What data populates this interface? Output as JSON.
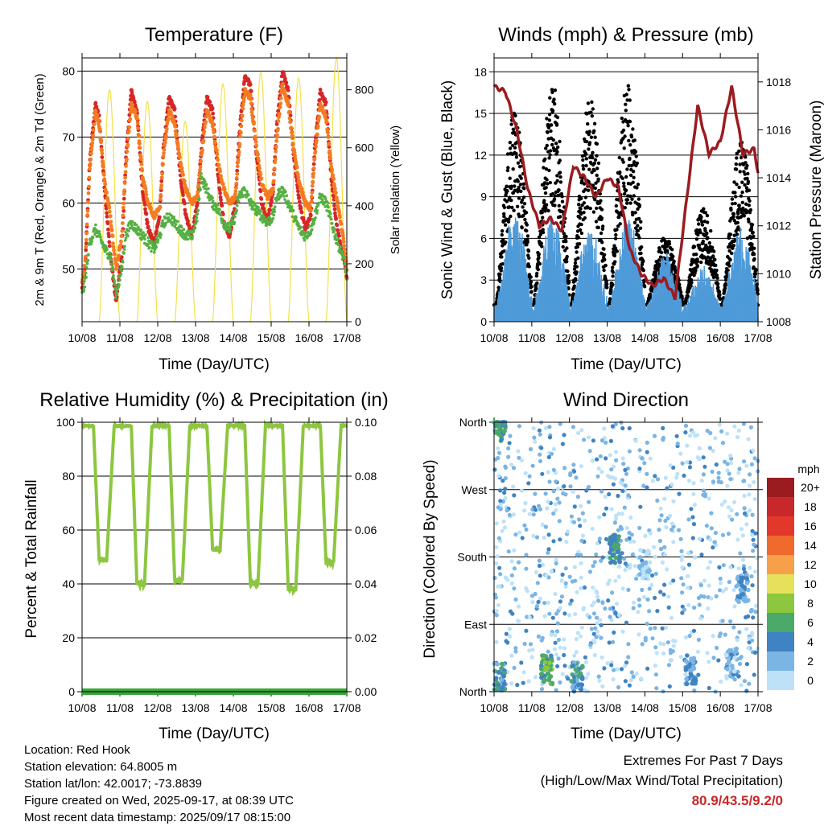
{
  "panels": {
    "temperature": {
      "title": "Temperature (F)",
      "xlabel": "Time (Day/UTC)",
      "ylabel_left": "2m & 9m T (Red, Orange) & 2m Td (Green)",
      "ylabel_right": "Solar Insolation (Yellow)"
    },
    "winds": {
      "title": "Winds (mph) & Pressure (mb)",
      "xlabel": "Time (Day/UTC)",
      "ylabel_left": "Sonic Wind & Gust (Blue, Black)",
      "ylabel_right": "Station Pressure (Maroon)"
    },
    "humidity": {
      "title": "Relative Humidity (%) & Precipitation (in)",
      "xlabel": "Time (Day/UTC)",
      "ylabel_left": "Percent & Total Rainfall"
    },
    "wind_direction": {
      "title": "Wind Direction",
      "xlabel": "Time (Day/UTC)",
      "ylabel_left": "Direction (Colored By Speed)",
      "legend_title": "mph"
    }
  },
  "footer": {
    "location": "Location: Red Hook",
    "elevation": "Station elevation: 64.8005 m",
    "latlon": "Station lat/lon: 42.0017; -73.8839",
    "created": "Figure created on Wed, 2025-09-17, at 08:39 UTC",
    "recent": "Most recent data timestamp: 2025/09/17 08:15:00"
  },
  "extremes": {
    "line1": "Extremes For Past 7 Days",
    "line2": "(High/Low/Max Wind/Total Precipitation)",
    "values": "80.9/43.5/9.2/0",
    "value_color": "#c8282a"
  },
  "colors": {
    "t2m": "#d62728",
    "t9m": "#f47c20",
    "td": "#55b043",
    "solar": "#f5e04a",
    "wind": "#4f9bd9",
    "gust": "#000000",
    "pressure": "#9b1c1f",
    "rh": "#8dc63f",
    "precip": "#3aa53a"
  },
  "chart_data": [
    {
      "type": "line",
      "title": "Temperature (F)",
      "xlabel": "Time (Day/UTC)",
      "ylabel": "2m & 9m T (Red, Orange) & 2m Td (Green)",
      "y2label": "Solar Insolation (Yellow)",
      "x_ticks": [
        "10/08",
        "11/08",
        "12/08",
        "13/08",
        "14/08",
        "15/08",
        "16/08",
        "17/08"
      ],
      "ylim": [
        42,
        82
      ],
      "y_ticks": [
        50,
        60,
        70,
        80
      ],
      "y2lim": [
        0,
        910
      ],
      "y2_ticks": [
        0,
        200,
        400,
        600,
        800
      ],
      "x_days": [
        0,
        0.08,
        0.2,
        0.35,
        0.45,
        0.6,
        0.75,
        0.9,
        1.05,
        1.15,
        1.3,
        1.45,
        1.6,
        1.75,
        1.9,
        2.05,
        2.15,
        2.3,
        2.45,
        2.6,
        2.75,
        2.9,
        3.05,
        3.15,
        3.3,
        3.45,
        3.6,
        3.75,
        3.9,
        4.05,
        4.15,
        4.3,
        4.45,
        4.6,
        4.75,
        4.9,
        5.05,
        5.15,
        5.3,
        5.45,
        5.6,
        5.75,
        5.9,
        6.05,
        6.15,
        6.3,
        6.45,
        6.6,
        6.75,
        6.9,
        7.0
      ],
      "series": [
        {
          "name": "2m T",
          "color": "#d62728",
          "values": [
            47,
            50,
            66,
            75,
            73,
            62,
            52,
            45,
            52,
            66,
            77,
            74,
            62,
            56,
            54,
            58,
            68,
            76,
            74,
            64,
            58,
            55,
            60,
            68,
            76,
            74,
            64,
            57,
            55,
            60,
            70,
            79,
            78,
            68,
            60,
            57,
            62,
            72,
            80,
            77,
            67,
            60,
            56,
            58,
            68,
            77,
            75,
            63,
            56,
            52,
            49
          ]
        },
        {
          "name": "9m T",
          "color": "#f47c20",
          "values": [
            48,
            51,
            65,
            74,
            72,
            63,
            58,
            50,
            55,
            65,
            75,
            73,
            64,
            60,
            58,
            59,
            67,
            74,
            72,
            66,
            62,
            60,
            61,
            67,
            74,
            72,
            66,
            62,
            60,
            61,
            68,
            77,
            76,
            69,
            63,
            61,
            62,
            70,
            78,
            75,
            68,
            63,
            60,
            59,
            67,
            75,
            73,
            65,
            60,
            55,
            50
          ]
        },
        {
          "name": "2m Td",
          "color": "#55b043",
          "values": [
            46,
            48,
            54,
            56,
            55,
            53,
            52,
            46,
            50,
            55,
            57,
            56,
            55,
            54,
            53,
            55,
            57,
            58,
            57,
            56,
            55,
            55,
            58,
            64,
            62,
            60,
            59,
            57,
            56,
            58,
            61,
            62,
            60,
            59,
            58,
            57,
            58,
            61,
            62,
            60,
            58,
            56,
            55,
            56,
            58,
            61,
            60,
            57,
            54,
            52,
            49
          ]
        }
      ],
      "solar": {
        "name": "Solar Insolation",
        "color": "#f5e04a",
        "peaks": [
          800,
          760,
          690,
          820,
          860,
          840,
          910
        ],
        "peak_day_offset": 0.7
      }
    },
    {
      "type": "line",
      "title": "Winds (mph) & Pressure (mb)",
      "xlabel": "Time (Day/UTC)",
      "ylabel": "Sonic Wind & Gust (Blue, Black)",
      "y2label": "Station Pressure (Maroon)",
      "x_ticks": [
        "10/08",
        "11/08",
        "12/08",
        "13/08",
        "14/08",
        "15/08",
        "16/08",
        "17/08"
      ],
      "ylim": [
        0,
        19
      ],
      "y_ticks": [
        0,
        3,
        6,
        9,
        12,
        15,
        18
      ],
      "y2lim": [
        1008,
        1019
      ],
      "y2_ticks": [
        1008,
        1010,
        1012,
        1014,
        1016,
        1018
      ],
      "x_days": [
        0,
        0.3,
        0.6,
        0.9,
        1.2,
        1.5,
        1.8,
        2.1,
        2.4,
        2.7,
        3.0,
        3.3,
        3.6,
        3.9,
        4.2,
        4.5,
        4.8,
        5.1,
        5.4,
        5.7,
        6.0,
        6.3,
        6.6,
        6.9,
        7.0
      ],
      "pressure": {
        "name": "Station Pressure",
        "color": "#9b1c1f",
        "values": [
          1017.8,
          1017.6,
          1016.0,
          1013.5,
          1012.0,
          1012.3,
          1011.8,
          1014.5,
          1014.0,
          1013.2,
          1014.0,
          1013.6,
          1011.0,
          1010.0,
          1009.5,
          1009.8,
          1009.0,
          1013.0,
          1017.0,
          1015.0,
          1015.5,
          1017.8,
          1015.0,
          1015.2,
          1014.2
        ]
      },
      "wind_mean": {
        "name": "Sonic Wind",
        "color": "#4f9bd9",
        "daily_peaks": [
          7,
          7,
          6,
          7,
          4,
          3,
          6
        ]
      },
      "gust": {
        "name": "Gust",
        "color": "#000000",
        "daily_peaks": [
          14,
          16,
          15,
          16,
          5,
          7,
          12
        ]
      }
    },
    {
      "type": "line",
      "title": "Relative Humidity (%) & Precipitation (in)",
      "xlabel": "Time (Day/UTC)",
      "ylabel": "Percent & Total Rainfall",
      "x_ticks": [
        "10/08",
        "11/08",
        "12/08",
        "13/08",
        "14/08",
        "15/08",
        "16/08",
        "17/08"
      ],
      "ylim": [
        0,
        100
      ],
      "y_ticks": [
        0,
        20,
        40,
        60,
        80,
        100
      ],
      "y2lim": [
        0,
        0.1
      ],
      "y2_ticks": [
        "0.00",
        "0.02",
        "0.04",
        "0.06",
        "0.08",
        "0.10"
      ],
      "rh_daily_min": [
        49,
        40,
        41,
        53,
        40,
        38,
        48
      ],
      "rh_max": 99,
      "precipitation_total": 0
    },
    {
      "type": "scatter",
      "title": "Wind Direction",
      "xlabel": "Time (Day/UTC)",
      "ylabel": "Direction (Colored By Speed)",
      "x_ticks": [
        "10/08",
        "11/08",
        "12/08",
        "13/08",
        "14/08",
        "15/08",
        "16/08",
        "17/08"
      ],
      "y_ticks": [
        "North",
        "East",
        "South",
        "West",
        "North"
      ],
      "ylim": [
        0,
        360
      ],
      "colorbar": {
        "title": "mph",
        "labels": [
          "20+",
          "18",
          "16",
          "14",
          "12",
          "10",
          "8",
          "6",
          "4",
          "2",
          "0"
        ],
        "colors": [
          "#9b1c1f",
          "#c8282a",
          "#e2382c",
          "#f06a2e",
          "#f6a04a",
          "#e6e05a",
          "#8dc63f",
          "#4ba96a",
          "#4083c2",
          "#7ab5e4",
          "#bde2f7"
        ]
      },
      "clusters": [
        {
          "day": 0.15,
          "dir": 355,
          "speed": 7
        },
        {
          "day": 0.15,
          "dir": 20,
          "speed": 6
        },
        {
          "day": 1.4,
          "dir": 30,
          "speed": 8
        },
        {
          "day": 2.2,
          "dir": 20,
          "speed": 6
        },
        {
          "day": 3.2,
          "dir": 190,
          "speed": 7
        },
        {
          "day": 4.0,
          "dir": 170,
          "speed": 3
        },
        {
          "day": 5.2,
          "dir": 30,
          "speed": 5
        },
        {
          "day": 6.3,
          "dir": 40,
          "speed": 4
        },
        {
          "day": 6.6,
          "dir": 140,
          "speed": 5
        }
      ]
    }
  ]
}
